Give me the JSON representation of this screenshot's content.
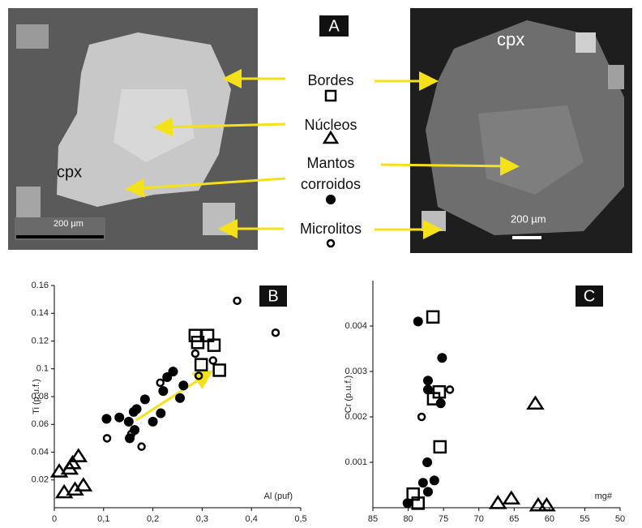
{
  "panel_a": {
    "letter": "A",
    "labels": [
      "Bordes",
      "Núcleos",
      "Mantos",
      "corroidos",
      "Microlitos"
    ],
    "mineral_left": "cpx",
    "mineral_right": "cpx",
    "scale_left": "200 µm",
    "scale_right": "200 µm"
  },
  "chart_data": [
    {
      "type": "scatter",
      "label": "B",
      "x_label": "Al (puf)",
      "y_label": "Ti (p.u.f.)",
      "xlim": [
        0,
        0.5
      ],
      "xticks": [
        0,
        {
          "value": 0.1,
          "label": "0,1"
        },
        {
          "value": 0.2,
          "label": "0,2"
        },
        {
          "value": 0.3,
          "label": "0,3"
        },
        {
          "value": 0.4,
          "label": "0,4"
        },
        {
          "value": 0.5,
          "label": "0,5"
        }
      ],
      "ylim": [
        0,
        0.16
      ],
      "yticks": [
        0.02,
        0.04,
        0.06,
        0.08,
        0.1,
        0.12,
        0.14,
        0.16
      ],
      "series": [
        {
          "marker": "square",
          "color": "#000000",
          "x": [
            0.286,
            0.311,
            0.291,
            0.324,
            0.298,
            0.335
          ],
          "values": [
            0.124,
            0.124,
            0.119,
            0.117,
            0.103,
            0.099
          ]
        },
        {
          "marker": "triangle",
          "color": "#000000",
          "x": [
            0.01,
            0.031,
            0.049,
            0.037,
            0.02,
            0.042,
            0.059
          ],
          "values": [
            0.026,
            0.028,
            0.037,
            0.032,
            0.011,
            0.013,
            0.016
          ]
        },
        {
          "marker": "filled-circle",
          "color": "#000000",
          "x": [
            0.106,
            0.132,
            0.151,
            0.153,
            0.163,
            0.161,
            0.184,
            0.2,
            0.216,
            0.221,
            0.229,
            0.241,
            0.255,
            0.262,
            0.167
          ],
          "values": [
            0.064,
            0.065,
            0.062,
            0.05,
            0.056,
            0.069,
            0.078,
            0.062,
            0.068,
            0.084,
            0.094,
            0.098,
            0.079,
            0.088,
            0.071
          ]
        },
        {
          "marker": "open-circle",
          "color": "#000000",
          "x": [
            0.371,
            0.449,
            0.286,
            0.107,
            0.177,
            0.215,
            0.293,
            0.322,
            0.156
          ],
          "values": [
            0.149,
            0.126,
            0.111,
            0.05,
            0.044,
            0.09,
            0.095,
            0.106,
            0.053
          ]
        }
      ]
    },
    {
      "type": "scatter",
      "label": "C",
      "x_label": "mg#",
      "y_label": "Cr (p.u.f.)",
      "xlim": [
        85,
        50
      ],
      "xticks": [
        85,
        80,
        75,
        70,
        65,
        60,
        55,
        50
      ],
      "ylim": [
        0,
        0.005
      ],
      "yticks": [
        0.001,
        0.002,
        0.003,
        0.004
      ],
      "series": [
        {
          "marker": "square",
          "color": "#000000",
          "x": [
            76.5,
            76.4,
            75.6,
            75.5,
            79.3,
            78.6
          ],
          "values": [
            0.0042,
            0.0024,
            0.00255,
            0.00134,
            0.0003,
            0.0001
          ]
        },
        {
          "marker": "triangle",
          "color": "#000000",
          "x": [
            62.0,
            67.3,
            65.4,
            61.6,
            60.4
          ],
          "values": [
            0.00229,
            0.0001,
            0.0002,
            5e-05,
            5e-05
          ]
        },
        {
          "marker": "filled-circle",
          "color": "#000000",
          "x": [
            78.6,
            77.2,
            75.2,
            77.2,
            77.3,
            77.9,
            77.2,
            80.1,
            76.3,
            75.4
          ],
          "values": [
            0.0041,
            0.0028,
            0.0033,
            0.0026,
            0.001,
            0.00055,
            0.00035,
            0.0001,
            0.0006,
            0.0023
          ]
        },
        {
          "marker": "open-circle",
          "color": "#000000",
          "x": [
            78.1,
            74.1
          ],
          "values": [
            0.002,
            0.0026
          ]
        }
      ]
    }
  ]
}
